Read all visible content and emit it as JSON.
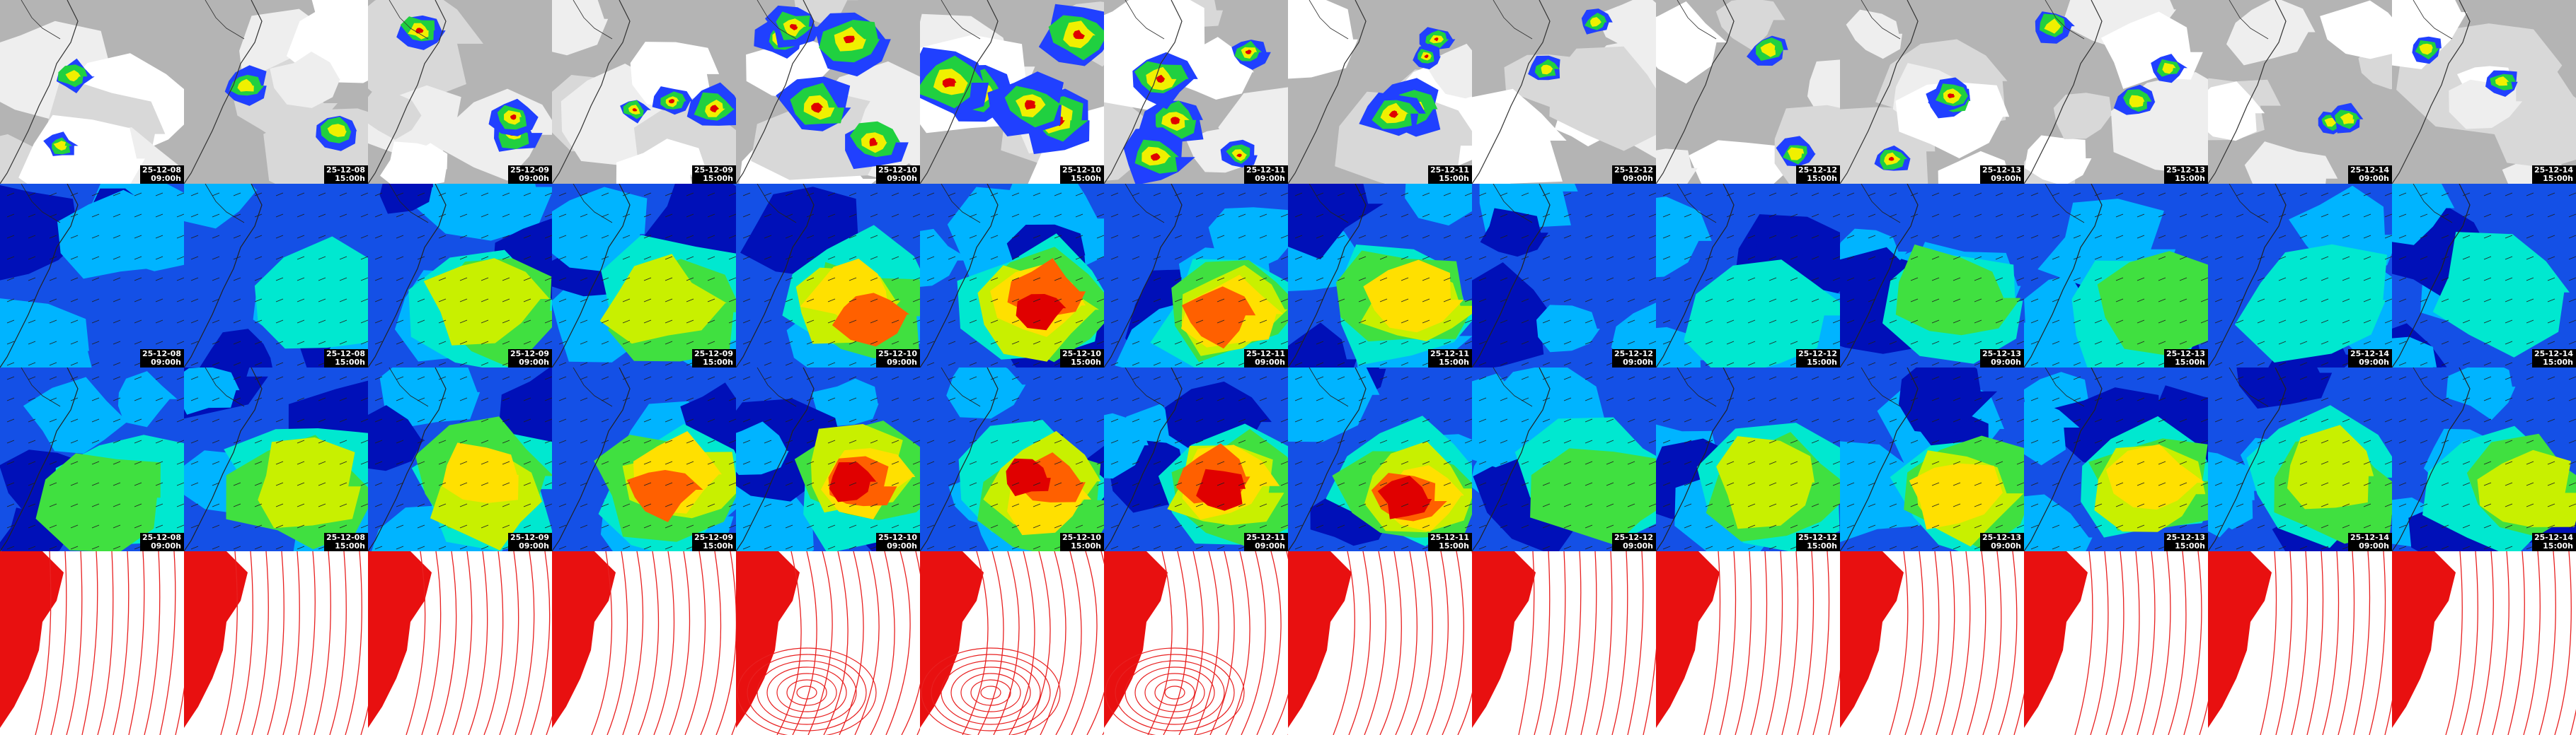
{
  "rows": [
    {
      "panels": [
        {
          "date": "25-12-08",
          "time": "09:00h"
        },
        {
          "date": "25-12-08",
          "time": "15:00h"
        },
        {
          "date": "25-12-09",
          "time": "09:00h"
        },
        {
          "date": "25-12-09",
          "time": "15:00h"
        },
        {
          "date": "25-12-10",
          "time": "09:00h"
        },
        {
          "date": "25-12-10",
          "time": "15:00h"
        },
        {
          "date": "25-12-11",
          "time": "09:00h"
        },
        {
          "date": "25-12-11",
          "time": "15:00h"
        },
        {
          "date": "25-12-12",
          "time": "09:00h"
        },
        {
          "date": "25-12-12",
          "time": "15:00h"
        },
        {
          "date": "25-12-13",
          "time": "09:00h"
        },
        {
          "date": "25-12-13",
          "time": "15:00h"
        },
        {
          "date": "25-12-14",
          "time": "09:00h"
        },
        {
          "date": "25-12-14",
          "time": "15:00h"
        }
      ]
    },
    {
      "panels": [
        {
          "date": "25-12-08",
          "time": "09:00h"
        },
        {
          "date": "25-12-08",
          "time": "15:00h"
        },
        {
          "date": "25-12-09",
          "time": "09:00h"
        },
        {
          "date": "25-12-09",
          "time": "15:00h"
        },
        {
          "date": "25-12-10",
          "time": "09:00h"
        },
        {
          "date": "25-12-10",
          "time": "15:00h"
        },
        {
          "date": "25-12-11",
          "time": "09:00h"
        },
        {
          "date": "25-12-11",
          "time": "15:00h"
        },
        {
          "date": "25-12-12",
          "time": "09:00h"
        },
        {
          "date": "25-12-12",
          "time": "15:00h"
        },
        {
          "date": "25-12-13",
          "time": "09:00h"
        },
        {
          "date": "25-12-13",
          "time": "15:00h"
        },
        {
          "date": "25-12-14",
          "time": "09:00h"
        },
        {
          "date": "25-12-14",
          "time": "15:00h"
        }
      ]
    },
    {
      "panels": [
        {
          "date": "25-12-08",
          "time": "09:00h"
        },
        {
          "date": "25-12-08",
          "time": "15:00h"
        },
        {
          "date": "25-12-09",
          "time": "09:00h"
        },
        {
          "date": "25-12-09",
          "time": "15:00h"
        },
        {
          "date": "25-12-10",
          "time": "09:00h"
        },
        {
          "date": "25-12-10",
          "time": "15:00h"
        },
        {
          "date": "25-12-11",
          "time": "09:00h"
        },
        {
          "date": "25-12-11",
          "time": "15:00h"
        },
        {
          "date": "25-12-12",
          "time": "09:00h"
        },
        {
          "date": "25-12-12",
          "time": "15:00h"
        },
        {
          "date": "25-12-13",
          "time": "09:00h"
        },
        {
          "date": "25-12-13",
          "time": "15:00h"
        },
        {
          "date": "25-12-14",
          "time": "09:00h"
        },
        {
          "date": "25-12-14",
          "time": "15:00h"
        }
      ]
    }
  ]
}
